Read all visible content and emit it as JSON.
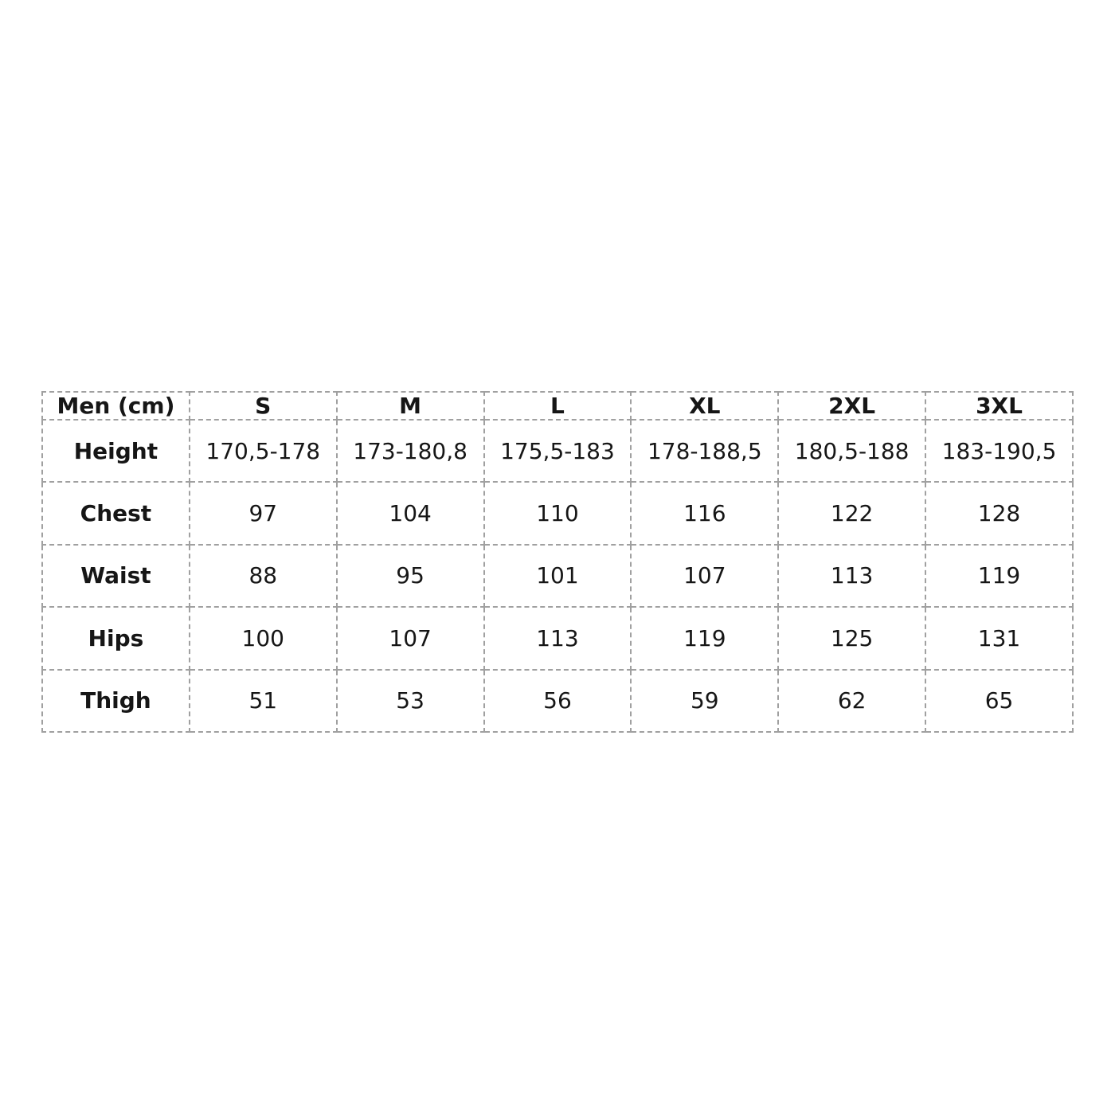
{
  "chart_data": {
    "type": "table",
    "columns": [
      "Men (cm)",
      "S",
      "M",
      "L",
      "XL",
      "2XL",
      "3XL"
    ],
    "rows": [
      [
        "Height",
        "170,5-178",
        "173-180,8",
        "175,5-183",
        "178-188,5",
        "180,5-188",
        "183-190,5"
      ],
      [
        "Chest",
        "97",
        "104",
        "110",
        "116",
        "122",
        "128"
      ],
      [
        "Waist",
        "88",
        "95",
        "101",
        "107",
        "113",
        "119"
      ],
      [
        "Hips",
        "100",
        "107",
        "113",
        "119",
        "125",
        "131"
      ],
      [
        "Thigh",
        "51",
        "53",
        "56",
        "59",
        "62",
        "65"
      ]
    ],
    "layout": {
      "grid": "dashed",
      "border_color": "#a0a0a0",
      "text_color": "#161616",
      "background": "#ffffff"
    }
  }
}
